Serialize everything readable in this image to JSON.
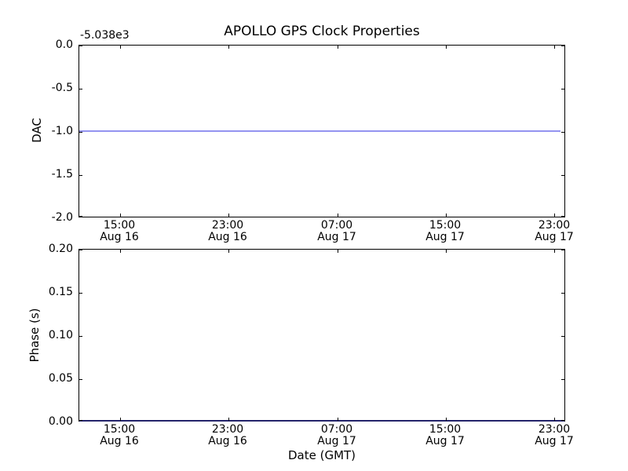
{
  "figure": {
    "title": "APOLLO GPS Clock Properties",
    "xlabel": "Date (GMT)",
    "background_color": "#ffffff",
    "spine_color": "#000000"
  },
  "top_chart": {
    "ylabel": "DAC",
    "offset_text": "-5.038e3",
    "yticks": [
      "0.0",
      "-0.5",
      "-1.0",
      "-1.5",
      "-2.0"
    ],
    "line_color": "#9494f0"
  },
  "bottom_chart": {
    "ylabel": "Phase (s)",
    "yticks": [
      "0.20",
      "0.15",
      "0.10",
      "0.05",
      "0.00"
    ],
    "zero_line_color": "#24246a"
  },
  "xticks": [
    {
      "time": "15:00",
      "date": "Aug 16"
    },
    {
      "time": "23:00",
      "date": "Aug 16"
    },
    {
      "time": "07:00",
      "date": "Aug 17"
    },
    {
      "time": "15:00",
      "date": "Aug 17"
    },
    {
      "time": "23:00",
      "date": "Aug 17"
    }
  ],
  "chart_data": [
    {
      "type": "line",
      "title": "APOLLO GPS Clock Properties",
      "ylabel": "DAC",
      "y_offset_label": "-5.038e3",
      "ylim": [
        -2.0,
        0.0
      ],
      "yticks": [
        0.0,
        -0.5,
        -1.0,
        -1.5,
        -2.0
      ],
      "xticklabels": [
        "15:00 Aug 16",
        "23:00 Aug 16",
        "07:00 Aug 17",
        "15:00 Aug 17",
        "23:00 Aug 17"
      ],
      "x_range_gmt": [
        "Aug 16 ~12:00",
        "Aug 17 ~23:52"
      ],
      "grid": false,
      "legend": null,
      "series": [
        {
          "name": "DAC",
          "style": "flat horizontal line",
          "y_constant_displayed": -1.0,
          "y_constant_absolute": -5039.0
        }
      ]
    },
    {
      "type": "line",
      "ylabel": "Phase (s)",
      "xlabel": "Date (GMT)",
      "ylim": [
        0.0,
        0.2
      ],
      "yticks": [
        0.2,
        0.15,
        0.1,
        0.05,
        0.0
      ],
      "xticklabels": [
        "15:00 Aug 16",
        "23:00 Aug 16",
        "07:00 Aug 17",
        "15:00 Aug 17",
        "23:00 Aug 17"
      ],
      "x_range_gmt": [
        "Aug 16 ~12:00",
        "Aug 17 ~23:52"
      ],
      "grid": false,
      "legend": null,
      "series": [
        {
          "name": "Phase",
          "style": "flat horizontal line along bottom axis",
          "y_constant_displayed": 0.0
        }
      ]
    }
  ]
}
